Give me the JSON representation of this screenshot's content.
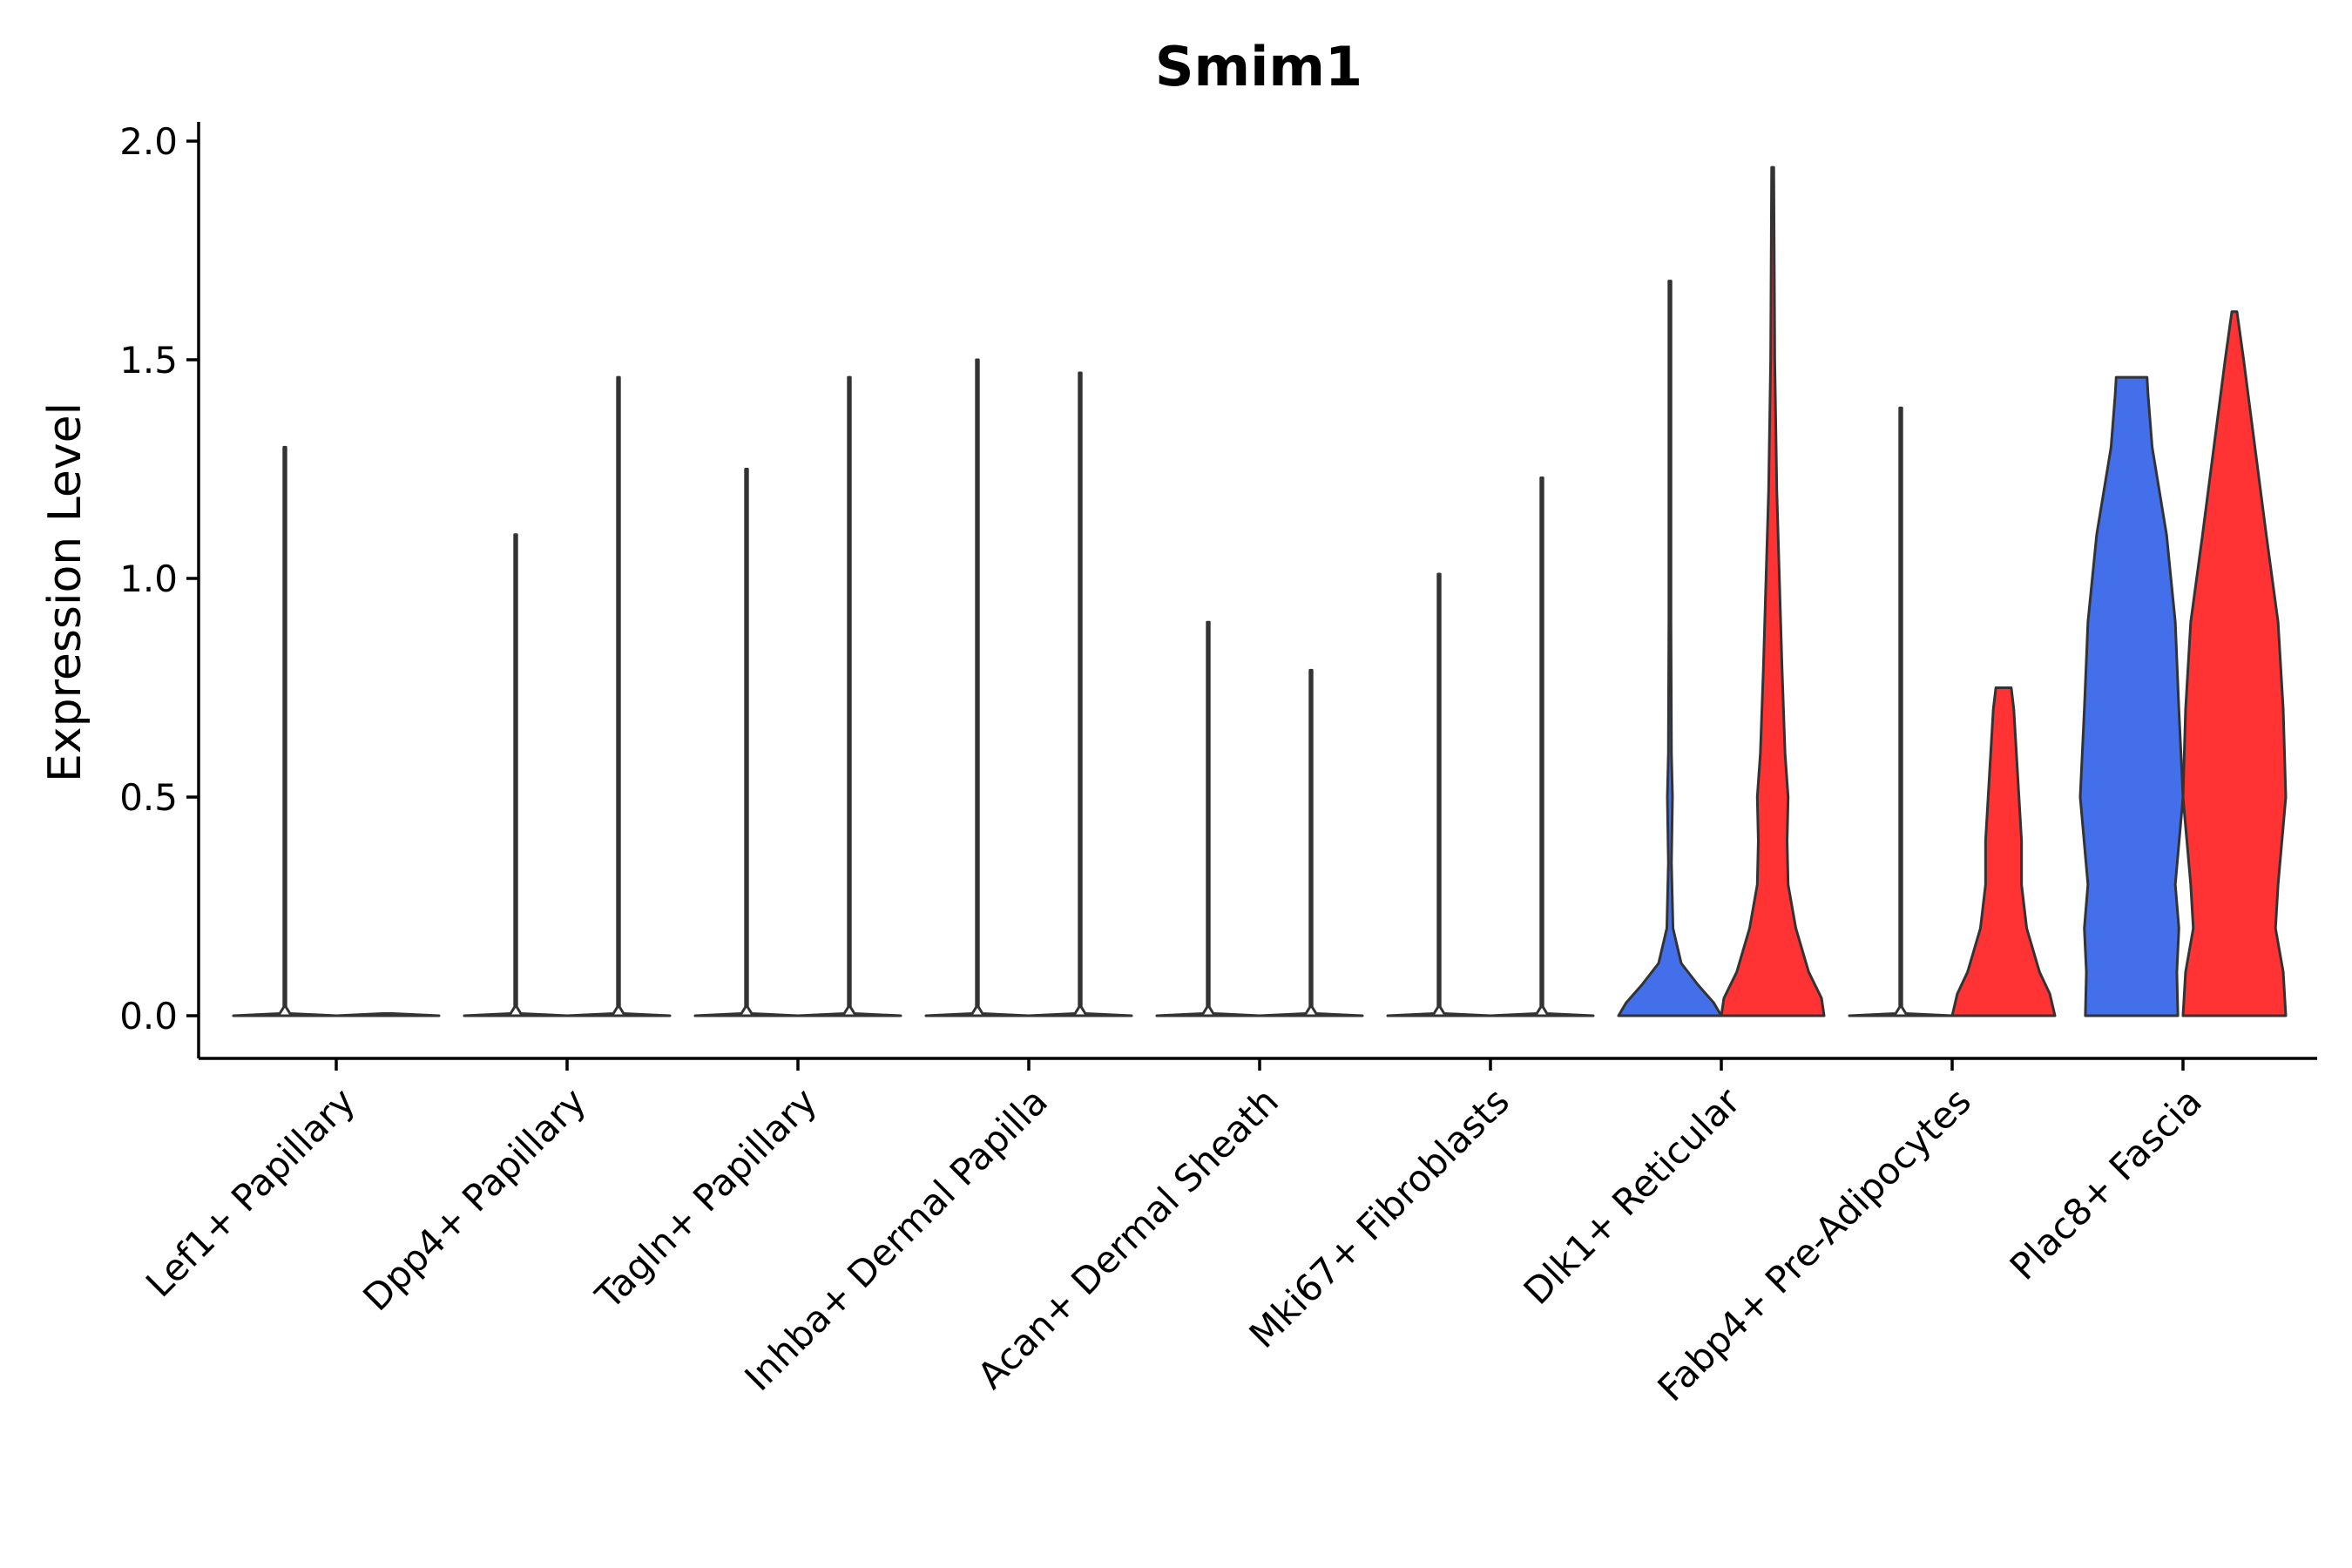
{
  "chart_data": {
    "type": "violin",
    "title": "Smim1",
    "xlabel": "",
    "ylabel": "Expression Level",
    "ylim": [
      -0.1,
      2.04
    ],
    "y_ticks": [
      "0.0",
      "0.5",
      "1.0",
      "1.5",
      "2.0"
    ],
    "y_tick_values": [
      0.0,
      0.5,
      1.0,
      1.5,
      2.0
    ],
    "categories": [
      "Lef1+ Papillary",
      "Dpp4+ Papillary",
      "Tagln+ Papillary",
      "Inhba+ Dermal Papilla",
      "Acan+ Dermal Sheath",
      "Mki67+ Fibroblasts",
      "Dlk1+ Reticular",
      "Fabp4+ Pre-Adipocytes",
      "Plac8+ Fascia"
    ],
    "groups": [
      {
        "name": "blue",
        "color": "#436FEB"
      },
      {
        "name": "red",
        "color": "#FF3333"
      }
    ],
    "violins": [
      {
        "category": "Lef1+ Papillary",
        "group": "blue",
        "max": 1.3,
        "profile": [
          [
            0,
            1
          ],
          [
            0.005,
            0.1
          ],
          [
            0.02,
            0.02
          ],
          [
            1.3,
            0.01
          ]
        ]
      },
      {
        "category": "Lef1+ Papillary",
        "group": "red",
        "max": 0.0,
        "profile": [
          [
            0,
            1
          ],
          [
            0.005,
            0.1
          ]
        ]
      },
      {
        "category": "Dpp4+ Papillary",
        "group": "blue",
        "max": 1.1,
        "profile": [
          [
            0,
            1
          ],
          [
            0.005,
            0.1
          ],
          [
            0.02,
            0.02
          ],
          [
            1.1,
            0.01
          ]
        ]
      },
      {
        "category": "Dpp4+ Papillary",
        "group": "red",
        "max": 1.46,
        "profile": [
          [
            0,
            1
          ],
          [
            0.005,
            0.1
          ],
          [
            0.02,
            0.02
          ],
          [
            1.46,
            0.01
          ]
        ]
      },
      {
        "category": "Tagln+ Papillary",
        "group": "blue",
        "max": 1.25,
        "profile": [
          [
            0,
            1
          ],
          [
            0.005,
            0.1
          ],
          [
            0.02,
            0.02
          ],
          [
            1.25,
            0.01
          ]
        ]
      },
      {
        "category": "Tagln+ Papillary",
        "group": "red",
        "max": 1.46,
        "profile": [
          [
            0,
            1
          ],
          [
            0.005,
            0.1
          ],
          [
            0.02,
            0.02
          ],
          [
            1.46,
            0.01
          ]
        ]
      },
      {
        "category": "Inhba+ Dermal Papilla",
        "group": "blue",
        "max": 1.5,
        "profile": [
          [
            0,
            1
          ],
          [
            0.005,
            0.1
          ],
          [
            0.02,
            0.02
          ],
          [
            1.5,
            0.01
          ]
        ]
      },
      {
        "category": "Inhba+ Dermal Papilla",
        "group": "red",
        "max": 1.47,
        "profile": [
          [
            0,
            1
          ],
          [
            0.005,
            0.1
          ],
          [
            0.02,
            0.02
          ],
          [
            1.47,
            0.01
          ]
        ]
      },
      {
        "category": "Acan+ Dermal Sheath",
        "group": "blue",
        "max": 0.9,
        "profile": [
          [
            0,
            1
          ],
          [
            0.005,
            0.1
          ],
          [
            0.02,
            0.02
          ],
          [
            0.9,
            0.01
          ]
        ]
      },
      {
        "category": "Acan+ Dermal Sheath",
        "group": "red",
        "max": 0.79,
        "profile": [
          [
            0,
            1
          ],
          [
            0.005,
            0.1
          ],
          [
            0.02,
            0.02
          ],
          [
            0.79,
            0.01
          ]
        ]
      },
      {
        "category": "Mki67+ Fibroblasts",
        "group": "blue",
        "max": 1.01,
        "profile": [
          [
            0,
            1
          ],
          [
            0.005,
            0.1
          ],
          [
            0.02,
            0.02
          ],
          [
            1.01,
            0.01
          ]
        ]
      },
      {
        "category": "Mki67+ Fibroblasts",
        "group": "red",
        "max": 1.23,
        "profile": [
          [
            0,
            1
          ],
          [
            0.005,
            0.1
          ],
          [
            0.02,
            0.02
          ],
          [
            1.23,
            0.01
          ]
        ]
      },
      {
        "category": "Dlk1+ Reticular",
        "group": "blue",
        "max": 1.68,
        "profile": [
          [
            0,
            1
          ],
          [
            0.03,
            0.85
          ],
          [
            0.07,
            0.55
          ],
          [
            0.12,
            0.22
          ],
          [
            0.2,
            0.06
          ],
          [
            0.35,
            0.03
          ],
          [
            0.5,
            0.05
          ],
          [
            0.6,
            0.03
          ],
          [
            0.9,
            0.015
          ],
          [
            1.68,
            0.01
          ]
        ]
      },
      {
        "category": "Dlk1+ Reticular",
        "group": "red",
        "max": 1.94,
        "profile": [
          [
            0,
            1
          ],
          [
            0.04,
            0.95
          ],
          [
            0.1,
            0.7
          ],
          [
            0.2,
            0.45
          ],
          [
            0.3,
            0.3
          ],
          [
            0.4,
            0.28
          ],
          [
            0.5,
            0.3
          ],
          [
            0.6,
            0.24
          ],
          [
            0.8,
            0.18
          ],
          [
            1.0,
            0.13
          ],
          [
            1.2,
            0.08
          ],
          [
            1.5,
            0.04
          ],
          [
            1.94,
            0.01
          ]
        ]
      },
      {
        "category": "Fabp4+ Pre-Adipocytes",
        "group": "blue",
        "max": 1.39,
        "profile": [
          [
            0,
            1
          ],
          [
            0.005,
            0.1
          ],
          [
            0.02,
            0.02
          ],
          [
            1.39,
            0.01
          ]
        ]
      },
      {
        "category": "Fabp4+ Pre-Adipocytes",
        "group": "red",
        "max": 0.75,
        "profile": [
          [
            0,
            1
          ],
          [
            0.05,
            0.9
          ],
          [
            0.1,
            0.7
          ],
          [
            0.2,
            0.45
          ],
          [
            0.3,
            0.35
          ],
          [
            0.4,
            0.35
          ],
          [
            0.5,
            0.3
          ],
          [
            0.6,
            0.25
          ],
          [
            0.7,
            0.2
          ],
          [
            0.75,
            0.15
          ]
        ]
      },
      {
        "category": "Plac8+ Fascia",
        "group": "blue",
        "max": 1.46,
        "profile": [
          [
            0,
            0.9
          ],
          [
            0.1,
            0.88
          ],
          [
            0.2,
            0.92
          ],
          [
            0.3,
            0.85
          ],
          [
            0.5,
            1.0
          ],
          [
            0.7,
            0.92
          ],
          [
            0.9,
            0.85
          ],
          [
            1.1,
            0.68
          ],
          [
            1.3,
            0.4
          ],
          [
            1.42,
            0.32
          ],
          [
            1.46,
            0.3
          ]
        ]
      },
      {
        "category": "Plac8+ Fascia",
        "group": "red",
        "max": 1.61,
        "profile": [
          [
            0,
            1
          ],
          [
            0.1,
            0.95
          ],
          [
            0.2,
            0.8
          ],
          [
            0.3,
            0.85
          ],
          [
            0.5,
            1.0
          ],
          [
            0.7,
            0.95
          ],
          [
            0.9,
            0.85
          ],
          [
            1.1,
            0.62
          ],
          [
            1.3,
            0.4
          ],
          [
            1.5,
            0.18
          ],
          [
            1.61,
            0.05
          ]
        ]
      }
    ]
  }
}
